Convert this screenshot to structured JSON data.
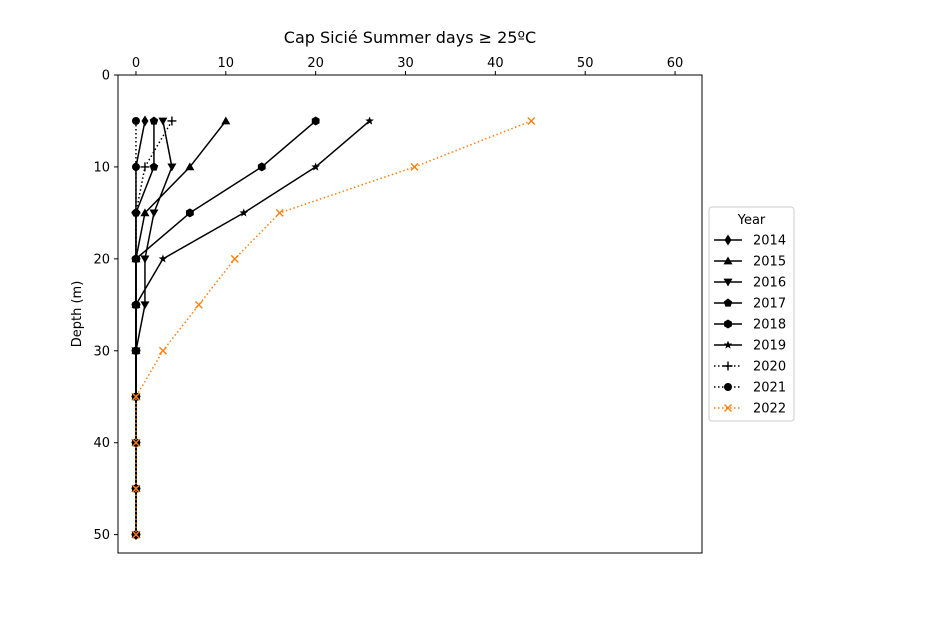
{
  "chart_data": {
    "type": "line",
    "title": "Cap Sicié Summer days ≥ 25ºC",
    "xlabel": "",
    "ylabel": "Depth (m)",
    "x_axis_position": "top",
    "y_inverted": true,
    "xlim": [
      -2,
      63
    ],
    "ylim": [
      52,
      0
    ],
    "x_ticks": [
      0,
      10,
      20,
      30,
      40,
      50,
      60
    ],
    "y_ticks": [
      0,
      10,
      20,
      30,
      40,
      50
    ],
    "grid": false,
    "legend": {
      "title": "Year",
      "position": "outside right, center"
    },
    "depths": [
      5,
      10,
      15,
      20,
      25,
      30,
      35,
      40,
      45,
      50
    ],
    "series": [
      {
        "name": "2014",
        "color": "#000000",
        "linestyle": "solid",
        "marker": "diamond",
        "values": [
          1,
          0,
          0,
          0,
          0,
          0,
          0,
          0,
          0,
          0
        ]
      },
      {
        "name": "2015",
        "color": "#000000",
        "linestyle": "solid",
        "marker": "triangle-up",
        "values": [
          10,
          6,
          1,
          0,
          0,
          0,
          0,
          0,
          0,
          0
        ]
      },
      {
        "name": "2016",
        "color": "#000000",
        "linestyle": "solid",
        "marker": "triangle-down",
        "values": [
          3,
          4,
          2,
          1,
          1,
          0,
          0,
          0,
          0,
          0
        ]
      },
      {
        "name": "2017",
        "color": "#000000",
        "linestyle": "solid",
        "marker": "pentagon",
        "values": [
          2,
          2,
          0,
          0,
          0,
          0,
          0,
          0,
          0,
          0
        ]
      },
      {
        "name": "2018",
        "color": "#000000",
        "linestyle": "solid",
        "marker": "hexagon",
        "values": [
          20,
          14,
          6,
          0,
          0,
          0,
          0,
          0,
          0,
          0
        ]
      },
      {
        "name": "2019",
        "color": "#000000",
        "linestyle": "solid",
        "marker": "star",
        "values": [
          26,
          20,
          12,
          3,
          0,
          0,
          0,
          0,
          0,
          0
        ]
      },
      {
        "name": "2020",
        "color": "#000000",
        "linestyle": "dotted",
        "marker": "plus",
        "values": [
          4,
          1,
          0,
          0,
          0,
          0,
          0,
          0,
          0,
          0
        ]
      },
      {
        "name": "2021",
        "color": "#000000",
        "linestyle": "dotted",
        "marker": "circle",
        "values": [
          0,
          0,
          0,
          0,
          0,
          0,
          0,
          0,
          0,
          0
        ]
      },
      {
        "name": "2022",
        "color": "#ff7f0e",
        "linestyle": "dotted",
        "marker": "x",
        "values": [
          44,
          31,
          16,
          11,
          7,
          3,
          0,
          0,
          0,
          0
        ]
      }
    ]
  }
}
